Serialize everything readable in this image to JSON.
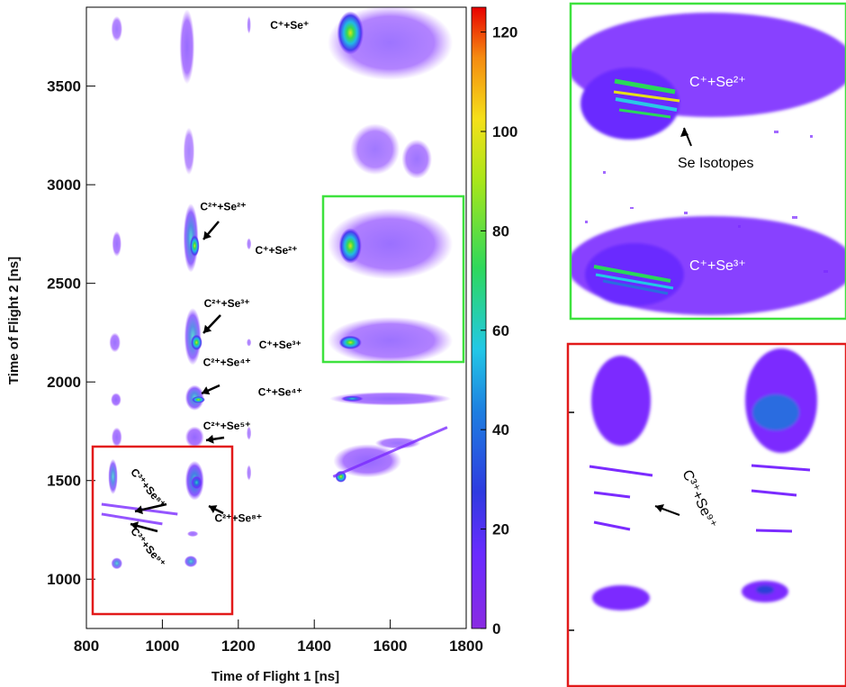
{
  "chart_data": [
    {
      "type": "heatmap",
      "xlabel": "Time of Flight 1 [ns]",
      "ylabel": "Time of Flight 2 [ns]",
      "xlim": [
        800,
        1800
      ],
      "ylim": [
        750,
        3900
      ],
      "x_ticks": [
        800,
        1000,
        1200,
        1400,
        1600,
        1800
      ],
      "y_ticks": [
        1000,
        1500,
        2000,
        2500,
        3000,
        3500
      ],
      "colorbar": {
        "min": 0,
        "max": 125,
        "ticks": [
          0,
          20,
          40,
          60,
          80,
          100,
          120
        ]
      },
      "colors": {
        "low": "#7b2bff",
        "mid_low": "#2a3fd8",
        "mid": "#23c7e6",
        "mid_high": "#37d84a",
        "high": "#f2e11c",
        "peak": "#f00000"
      },
      "annotations": [
        {
          "label": "C⁺+Se⁺",
          "x": 1335,
          "y": 3790
        },
        {
          "label": "C²⁺+Se²⁺",
          "x": 1160,
          "y": 2870
        },
        {
          "label": "C⁺+Se²⁺",
          "x": 1300,
          "y": 2650
        },
        {
          "label": "C²⁺+Se³⁺",
          "x": 1170,
          "y": 2380
        },
        {
          "label": "C⁺+Se³⁺",
          "x": 1310,
          "y": 2170
        },
        {
          "label": "C²⁺+Se⁴⁺",
          "x": 1170,
          "y": 2080
        },
        {
          "label": "C⁺+Se⁴⁺",
          "x": 1310,
          "y": 1930
        },
        {
          "label": "C²⁺+Se⁵⁺",
          "x": 1170,
          "y": 1760
        },
        {
          "label": "C²⁺+Se⁸⁺",
          "x": 1200,
          "y": 1290
        },
        {
          "label": "C³⁺+Se⁸⁺",
          "x": 955,
          "y": 1450
        },
        {
          "label": "C³⁺+Se⁹⁺",
          "x": 955,
          "y": 1150
        }
      ],
      "islands": [
        {
          "x": 880,
          "y": 3790,
          "w": 30,
          "h": 130,
          "i": 0.12
        },
        {
          "x": 1065,
          "y": 3700,
          "w": 40,
          "h": 380,
          "i": 0.18
        },
        {
          "x": 1228,
          "y": 3810,
          "w": 10,
          "h": 90,
          "i": 0.06
        },
        {
          "x": 1600,
          "y": 3720,
          "w": 330,
          "h": 380,
          "i": 0.14
        },
        {
          "x": 1495,
          "y": 3770,
          "w": 70,
          "h": 220,
          "i": 0.55
        },
        {
          "x": 1070,
          "y": 3170,
          "w": 30,
          "h": 240,
          "i": 0.06
        },
        {
          "x": 1560,
          "y": 3180,
          "w": 130,
          "h": 260,
          "i": 0.12
        },
        {
          "x": 1670,
          "y": 3130,
          "w": 80,
          "h": 200,
          "i": 0.14
        },
        {
          "x": 880,
          "y": 2700,
          "w": 25,
          "h": 130,
          "i": 0.15
        },
        {
          "x": 1075,
          "y": 2730,
          "w": 40,
          "h": 350,
          "i": 0.25
        },
        {
          "x": 1085,
          "y": 2690,
          "w": 25,
          "h": 110,
          "i": 0.6
        },
        {
          "x": 1228,
          "y": 2700,
          "w": 12,
          "h": 60,
          "i": 0.08
        },
        {
          "x": 1600,
          "y": 2700,
          "w": 330,
          "h": 360,
          "i": 0.16
        },
        {
          "x": 1495,
          "y": 2690,
          "w": 60,
          "h": 180,
          "i": 0.62
        },
        {
          "x": 875,
          "y": 2200,
          "w": 30,
          "h": 100,
          "i": 0.15
        },
        {
          "x": 1080,
          "y": 2230,
          "w": 45,
          "h": 290,
          "i": 0.22
        },
        {
          "x": 1090,
          "y": 2200,
          "w": 30,
          "h": 80,
          "i": 0.6
        },
        {
          "x": 1228,
          "y": 2200,
          "w": 12,
          "h": 40,
          "i": 0.08
        },
        {
          "x": 1600,
          "y": 2210,
          "w": 330,
          "h": 240,
          "i": 0.15
        },
        {
          "x": 1495,
          "y": 2200,
          "w": 60,
          "h": 70,
          "i": 0.58
        },
        {
          "x": 878,
          "y": 1910,
          "w": 28,
          "h": 70,
          "i": 0.2
        },
        {
          "x": 1085,
          "y": 1920,
          "w": 50,
          "h": 130,
          "i": 0.25
        },
        {
          "x": 1095,
          "y": 1910,
          "w": 35,
          "h": 35,
          "i": 0.55
        },
        {
          "x": 1600,
          "y": 1915,
          "w": 320,
          "h": 70,
          "i": 0.2
        },
        {
          "x": 1500,
          "y": 1915,
          "w": 60,
          "h": 30,
          "i": 0.4
        },
        {
          "x": 880,
          "y": 1720,
          "w": 28,
          "h": 100,
          "i": 0.17
        },
        {
          "x": 1085,
          "y": 1720,
          "w": 50,
          "h": 110,
          "i": 0.2
        },
        {
          "x": 1228,
          "y": 1740,
          "w": 12,
          "h": 70,
          "i": 0.07
        },
        {
          "x": 1540,
          "y": 1600,
          "w": 180,
          "h": 170,
          "i": 0.2
        },
        {
          "x": 1620,
          "y": 1690,
          "w": 120,
          "h": 60,
          "i": 0.15
        },
        {
          "x": 1470,
          "y": 1520,
          "w": 30,
          "h": 60,
          "i": 0.55
        },
        {
          "x": 870,
          "y": 1520,
          "w": 25,
          "h": 180,
          "i": 0.22
        },
        {
          "x": 1085,
          "y": 1500,
          "w": 50,
          "h": 200,
          "i": 0.32
        },
        {
          "x": 1090,
          "y": 1490,
          "w": 30,
          "h": 70,
          "i": 0.45
        },
        {
          "x": 1228,
          "y": 1540,
          "w": 12,
          "h": 80,
          "i": 0.08
        },
        {
          "x": 1080,
          "y": 1230,
          "w": 30,
          "h": 30,
          "i": 0.15
        },
        {
          "x": 880,
          "y": 1080,
          "w": 30,
          "h": 60,
          "i": 0.22
        },
        {
          "x": 1075,
          "y": 1090,
          "w": 35,
          "h": 60,
          "i": 0.25
        }
      ],
      "streaks": [
        {
          "x1": 1450,
          "y1": 1520,
          "x2": 1750,
          "y2": 1770,
          "i": 0.13
        },
        {
          "x1": 840,
          "y1": 1380,
          "x2": 1040,
          "y2": 1330,
          "i": 0.25
        },
        {
          "x1": 840,
          "y1": 1330,
          "x2": 1000,
          "y2": 1280,
          "i": 0.2
        }
      ]
    },
    {
      "type": "heatmap",
      "title": "",
      "annotations": [
        {
          "label": "C⁺+Se²⁺"
        },
        {
          "label": "Se Isotopes"
        },
        {
          "label": "C⁺+Se³⁺"
        }
      ]
    },
    {
      "type": "heatmap",
      "title": "",
      "annotations": [
        {
          "label": "C³⁺+Se⁹⁺"
        }
      ]
    }
  ],
  "main_ticks_x": [
    "800",
    "1000",
    "1200",
    "1400",
    "1600",
    "1800"
  ],
  "main_ticks_y": [
    "1000",
    "1500",
    "2000",
    "2500",
    "3000",
    "3500"
  ],
  "colorbar_ticks": [
    "0",
    "20",
    "40",
    "60",
    "80",
    "100",
    "120"
  ],
  "labels": {
    "xaxis": "Time of Flight 1 [ns]",
    "yaxis": "Time of Flight 2 [ns]"
  }
}
